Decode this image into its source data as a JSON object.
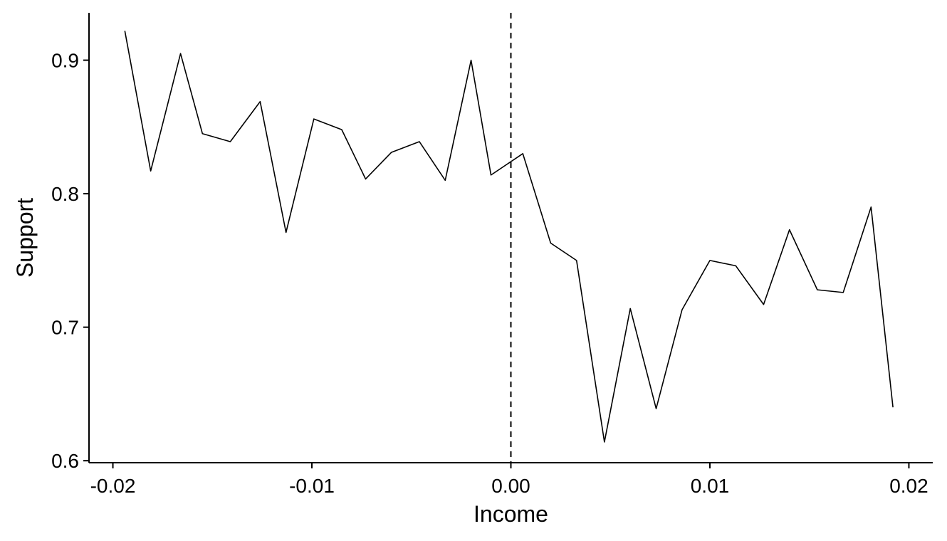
{
  "chart_data": {
    "type": "line",
    "title": "",
    "xlabel": "Income",
    "ylabel": "Support",
    "xlim": [
      -0.0212,
      0.0212
    ],
    "ylim": [
      0.5985,
      0.9355
    ],
    "x_ticks": [
      -0.02,
      -0.01,
      0.0,
      0.01,
      0.02
    ],
    "x_tick_labels": [
      "-0.02",
      "-0.01",
      "0.00",
      "0.01",
      "0.02"
    ],
    "y_ticks": [
      0.6,
      0.7,
      0.8,
      0.9
    ],
    "y_tick_labels": [
      "0.6",
      "0.7",
      "0.8",
      "0.9"
    ],
    "grid": false,
    "legend": "none",
    "reference_line": {
      "x": 0.0,
      "style": "dashed"
    },
    "series": [
      {
        "color": "#000000",
        "x": [
          -0.0194,
          -0.0181,
          -0.0166,
          -0.0155,
          -0.0141,
          -0.0126,
          -0.0113,
          -0.0099,
          -0.0085,
          -0.0073,
          -0.006,
          -0.0046,
          -0.0033,
          -0.002,
          -0.001,
          0.0006,
          0.002,
          0.0033,
          0.0047,
          0.006,
          0.0073,
          0.0086,
          0.01,
          0.0113,
          0.0127,
          0.014,
          0.0154,
          0.0167,
          0.0181,
          0.0192
        ],
        "y": [
          0.922,
          0.817,
          0.905,
          0.845,
          0.839,
          0.869,
          0.771,
          0.856,
          0.848,
          0.811,
          0.831,
          0.839,
          0.81,
          0.9,
          0.814,
          0.83,
          0.763,
          0.75,
          0.614,
          0.714,
          0.639,
          0.713,
          0.75,
          0.746,
          0.717,
          0.773,
          0.728,
          0.726,
          0.79,
          0.64
        ]
      }
    ]
  }
}
